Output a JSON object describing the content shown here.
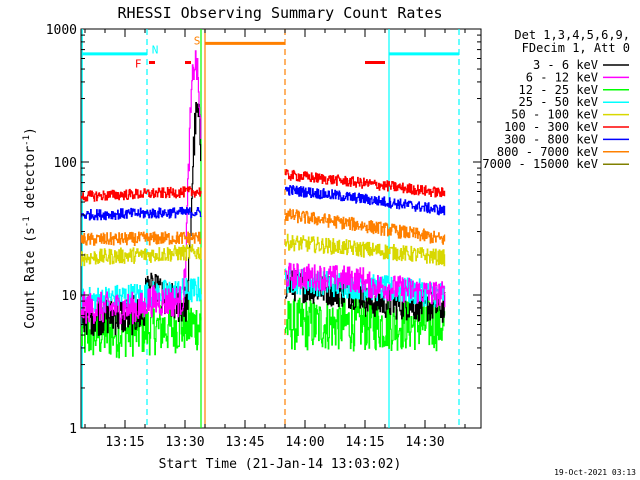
{
  "chart_data": {
    "type": "line",
    "title": "RHESSI Observing Summary Count Rates",
    "xlabel": "Start Time (21-Jan-14 13:03:02)",
    "ylabel_parts": [
      "Count Rate (s",
      "-1",
      " detector",
      "-1",
      ")"
    ],
    "yscale": "log",
    "ylim": [
      1,
      1000
    ],
    "xlim_min": [
      4.0,
      104.0
    ],
    "ytick_labels": [
      {
        "value": 1,
        "label": "1"
      },
      {
        "value": 10,
        "label": "10"
      },
      {
        "value": 100,
        "label": "100"
      },
      {
        "value": 1000,
        "label": "1000"
      }
    ],
    "xtick_labels": [
      {
        "t": 15,
        "label": "13:15"
      },
      {
        "t": 30,
        "label": "13:30"
      },
      {
        "t": 45,
        "label": "13:45"
      },
      {
        "t": 60,
        "label": "14:00"
      },
      {
        "t": 75,
        "label": "14:15"
      },
      {
        "t": 90,
        "label": "14:30"
      }
    ],
    "legend_header": [
      "Det 1,3,4,5,6,9,",
      "FDecim 1, Att 0"
    ],
    "series": [
      {
        "name": "3 - 6 keV",
        "color": "#000000",
        "segments": [
          {
            "t0": 4,
            "t1": 20,
            "v0": 7,
            "v1": 7,
            "noise": 0.15
          },
          {
            "t0": 20,
            "t1": 24,
            "v0": 12,
            "v1": 11,
            "noise": 0.1
          },
          {
            "t0": 24,
            "t1": 34,
            "v0": 9,
            "v1": 8,
            "noise": 0.15,
            "peak": {
              "t": 33,
              "v": 230,
              "w": 1.1
            }
          },
          {
            "t0": 55,
            "t1": 75,
            "v0": 12,
            "v1": 10,
            "noise": 0.12
          },
          {
            "t0": 75,
            "t1": 95,
            "v0": 9,
            "v1": 8,
            "noise": 0.12
          }
        ]
      },
      {
        "name": "6 - 12 keV",
        "color": "#ff00ff",
        "segments": [
          {
            "t0": 4,
            "t1": 20,
            "v0": 8,
            "v1": 8,
            "noise": 0.12
          },
          {
            "t0": 20,
            "t1": 34,
            "v0": 9,
            "v1": 9,
            "noise": 0.12,
            "peak": {
              "t": 32.5,
              "v": 560,
              "w": 1.2
            }
          },
          {
            "t0": 55,
            "t1": 75,
            "v0": 14,
            "v1": 13,
            "noise": 0.1
          },
          {
            "t0": 75,
            "t1": 95,
            "v0": 12,
            "v1": 10,
            "noise": 0.1
          }
        ]
      },
      {
        "name": "12 - 25 keV",
        "color": "#00ff00",
        "segments": [
          {
            "t0": 4,
            "t1": 34,
            "v0": 5,
            "v1": 6,
            "noise": 0.2
          },
          {
            "t0": 55,
            "t1": 95,
            "v0": 6,
            "v1": 6,
            "noise": 0.2
          }
        ]
      },
      {
        "name": "25 - 50 keV",
        "color": "#00ffff",
        "segments": [
          {
            "t0": 4,
            "t1": 34,
            "v0": 9,
            "v1": 11,
            "noise": 0.1
          },
          {
            "t0": 55,
            "t1": 95,
            "v0": 13,
            "v1": 10,
            "noise": 0.1
          }
        ]
      },
      {
        "name": "50 - 100 keV",
        "color": "#d8d800",
        "segments": [
          {
            "t0": 4,
            "t1": 34,
            "v0": 19,
            "v1": 21,
            "noise": 0.06
          },
          {
            "t0": 55,
            "t1": 95,
            "v0": 25,
            "v1": 19,
            "noise": 0.06
          }
        ]
      },
      {
        "name": "100 - 300 keV",
        "color": "#ff0000",
        "segments": [
          {
            "t0": 4,
            "t1": 34,
            "v0": 55,
            "v1": 60,
            "noise": 0.04
          },
          {
            "t0": 55,
            "t1": 95,
            "v0": 80,
            "v1": 58,
            "noise": 0.04
          }
        ]
      },
      {
        "name": "300 - 800 keV",
        "color": "#0000ff",
        "segments": [
          {
            "t0": 4,
            "t1": 34,
            "v0": 40,
            "v1": 42,
            "noise": 0.04
          },
          {
            "t0": 55,
            "t1": 95,
            "v0": 62,
            "v1": 43,
            "noise": 0.04
          }
        ]
      },
      {
        "name": "800 - 7000 keV",
        "color": "#ff8000",
        "segments": [
          {
            "t0": 4,
            "t1": 34,
            "v0": 26,
            "v1": 27,
            "noise": 0.05
          },
          {
            "t0": 55,
            "t1": 95,
            "v0": 40,
            "v1": 26,
            "noise": 0.05
          }
        ]
      },
      {
        "name": "7000 - 15000 keV",
        "color": "#808000",
        "segments": []
      }
    ],
    "vertical_markers": [
      {
        "t": 4.3,
        "color": "#00ffff",
        "style": "solid"
      },
      {
        "t": 20.5,
        "color": "#00ffff",
        "style": "dashed"
      },
      {
        "t": 34.0,
        "color": "#00ff00",
        "style": "solid"
      },
      {
        "t": 35.0,
        "color": "#ff8000",
        "style": "solid"
      },
      {
        "t": 55.0,
        "color": "#ff8000",
        "style": "dashed"
      },
      {
        "t": 81.0,
        "color": "#00ffff",
        "style": "solid"
      },
      {
        "t": 98.5,
        "color": "#00ffff",
        "style": "dashed"
      }
    ],
    "status_bars": [
      {
        "t0": 4.3,
        "t1": 20.5,
        "color": "#00ffff",
        "level": 650
      },
      {
        "t0": 81.0,
        "t1": 98.5,
        "color": "#00ffff",
        "level": 650
      },
      {
        "t0": 35.0,
        "t1": 55.0,
        "color": "#ff8000",
        "level": 780
      },
      {
        "t0": 21.0,
        "t1": 22.5,
        "color": "#ff0000",
        "level": 560
      },
      {
        "t0": 30.0,
        "t1": 31.5,
        "color": "#ff0000",
        "level": 560
      },
      {
        "t0": 75.0,
        "t1": 80.0,
        "color": "#ff0000",
        "level": 560
      }
    ],
    "bar_labels": [
      {
        "text": "N",
        "t": 22.5,
        "level": 700,
        "color": "#00ffff"
      },
      {
        "text": "S",
        "t": 33.0,
        "level": 820,
        "color": "#ff8000"
      },
      {
        "text": "F",
        "t": 18.3,
        "level": 550,
        "color": "#ff0000"
      }
    ]
  },
  "footer": {
    "date_stamp": "19-Oct-2021 03:13"
  }
}
